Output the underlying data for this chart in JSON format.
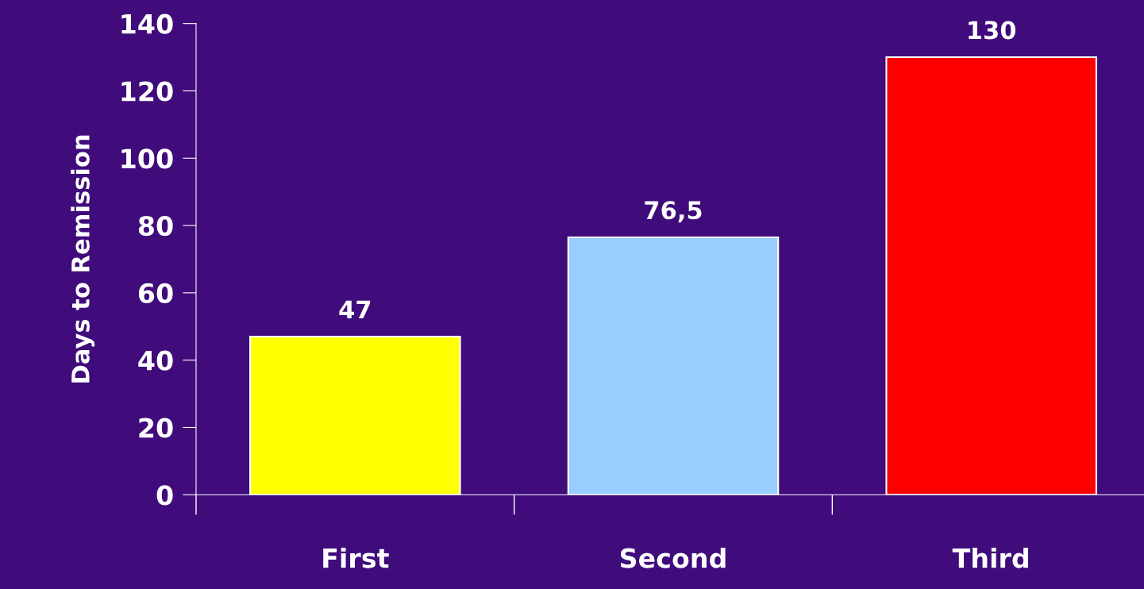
{
  "chart_data": {
    "type": "bar",
    "ylabel": "Days to Remission",
    "categories": [
      "First",
      "Second",
      "Third"
    ],
    "values": [
      47,
      76.5,
      130
    ],
    "colors": [
      "#ffff00",
      "#99ccff",
      "#ff0000"
    ],
    "value_labels": [
      "47",
      "76,5",
      "130"
    ],
    "ylim": [
      0,
      140
    ],
    "yticks": [
      0,
      20,
      40,
      60,
      80,
      100,
      120,
      140
    ],
    "grid": false,
    "legend": false
  }
}
